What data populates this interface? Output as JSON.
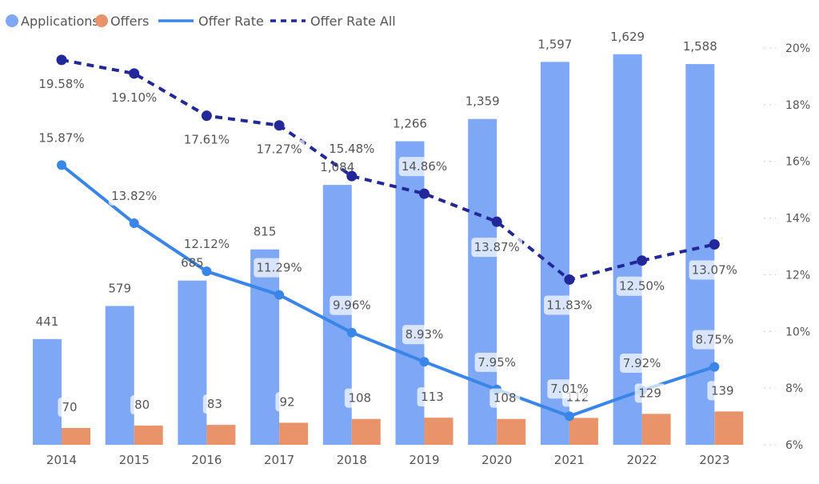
{
  "chart_data": {
    "type": "bar",
    "categories": [
      "2014",
      "2015",
      "2016",
      "2017",
      "2018",
      "2019",
      "2020",
      "2021",
      "2022",
      "2023"
    ],
    "series": [
      {
        "name": "Applications",
        "kind": "bar",
        "color": "#7EA8F6",
        "values": [
          441,
          579,
          685,
          815,
          1084,
          1266,
          1359,
          1597,
          1629,
          1588
        ]
      },
      {
        "name": "Offers",
        "kind": "bar",
        "color": "#E8936A",
        "values": [
          70,
          80,
          83,
          92,
          108,
          113,
          108,
          112,
          129,
          139
        ]
      },
      {
        "name": "Offer Rate",
        "kind": "line",
        "axis": "right",
        "color": "#3A86E8",
        "values": [
          15.87,
          13.82,
          12.12,
          11.29,
          9.96,
          8.93,
          7.95,
          7.01,
          7.92,
          8.75
        ]
      },
      {
        "name": "Offer Rate All",
        "kind": "line-dashed",
        "axis": "right",
        "color": "#22279A",
        "values": [
          19.58,
          19.1,
          17.61,
          17.27,
          15.48,
          14.86,
          13.87,
          11.83,
          12.5,
          13.07
        ]
      }
    ],
    "value_labels": {
      "Applications": [
        "441",
        "579",
        "685",
        "815",
        "1,084",
        "1,266",
        "1,359",
        "1,597",
        "1,629",
        "1,588"
      ],
      "Offers": [
        "70",
        "80",
        "83",
        "92",
        "108",
        "113",
        "108",
        "112",
        "129",
        "139"
      ],
      "Offer Rate": [
        "15.87%",
        "13.82%",
        "12.12%",
        "11.29%",
        "9.96%",
        "8.93%",
        "7.95%",
        "7.01%",
        "7.92%",
        "8.75%"
      ],
      "Offer Rate All": [
        "19.58%",
        "19.10%",
        "17.61%",
        "17.27%",
        "15.48%",
        "14.86%",
        "13.87%",
        "11.83%",
        "12.50%",
        "13.07%"
      ]
    },
    "y_left_range": [
      0,
      1900
    ],
    "y_right_range": [
      6,
      20
    ],
    "y_right_ticks": [
      "6%",
      "8%",
      "10%",
      "12%",
      "14%",
      "16%",
      "18%",
      "20%"
    ],
    "y_right_tick_values": [
      6,
      8,
      10,
      12,
      14,
      16,
      18,
      20
    ],
    "legend_position": "top-left",
    "grid": false
  }
}
